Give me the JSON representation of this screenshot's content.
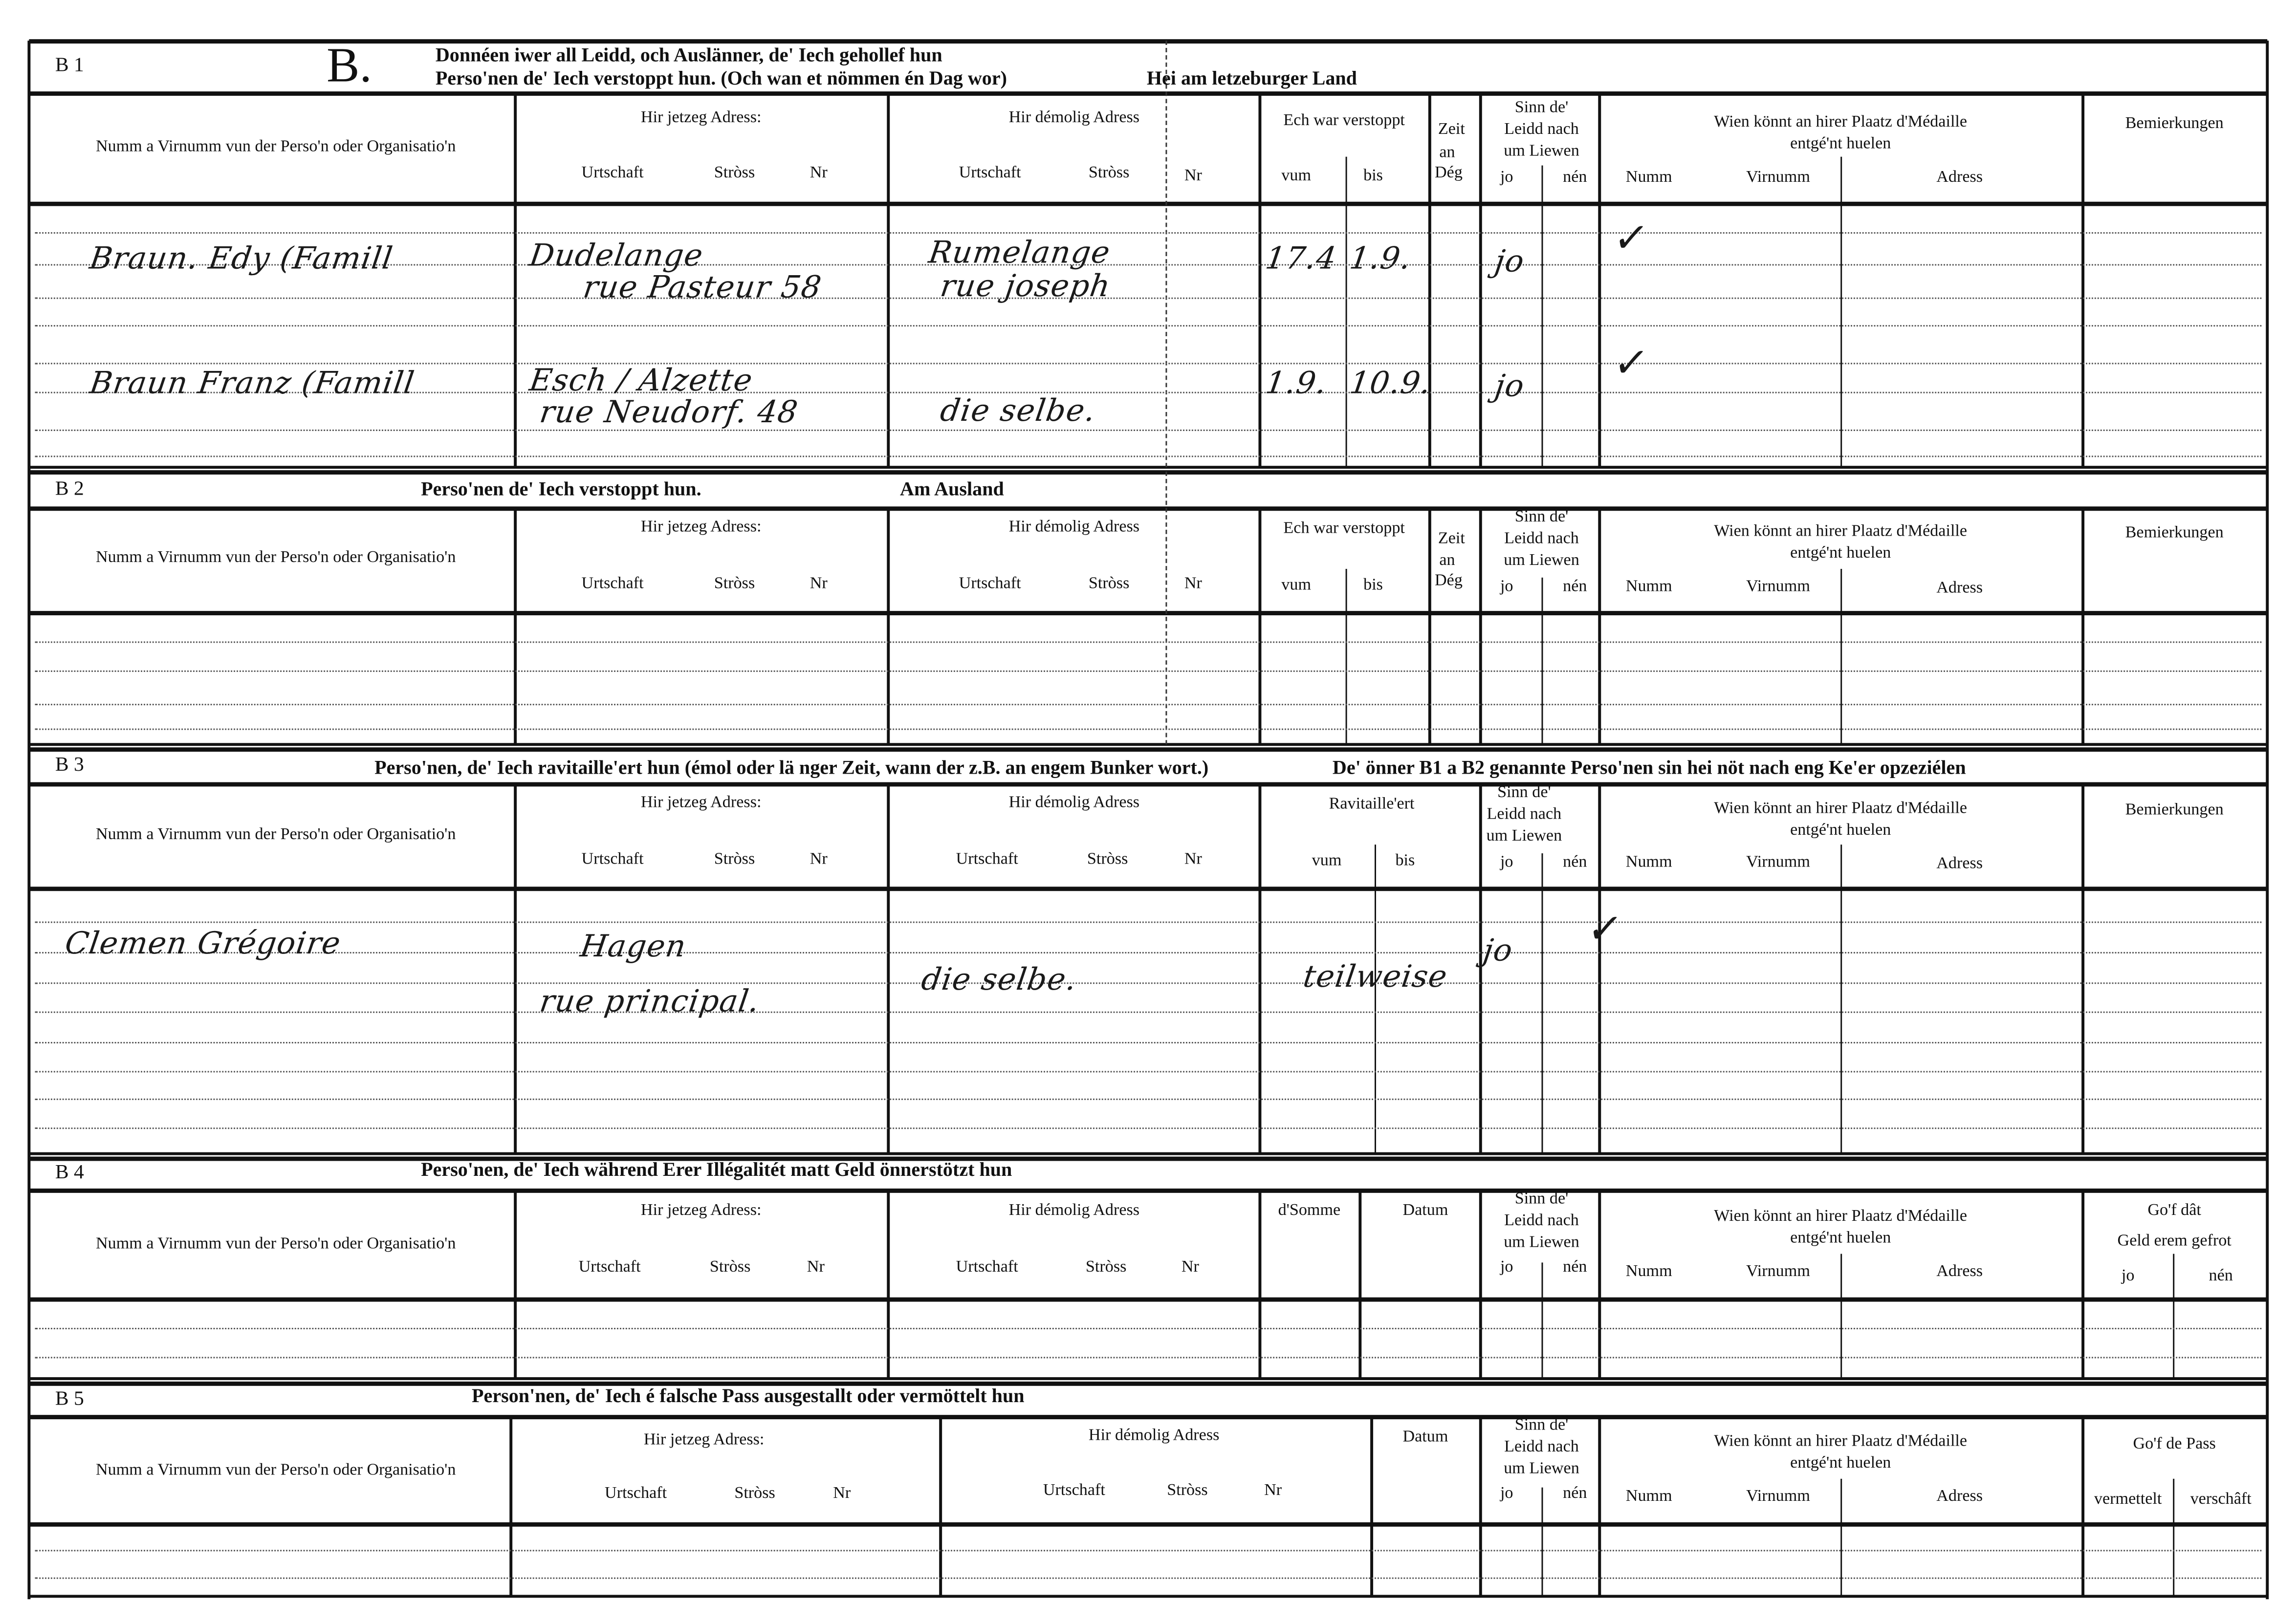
{
  "form_letter": "B.",
  "sections": [
    {
      "label": "B 1",
      "title": [
        "Donnéen iwer all Leidd, och Auslänner, de' Iech gehollef hun",
        "Perso'nen de' Iech verstoppt hun. (Och wan et nömmen én Dag wor)",
        "Hei am letzeburger Land"
      ],
      "headers": [
        "Numm a Virnumm vun der Perso'n oder Organisatio'n",
        "Hir jetzeg Adress:",
        "Urtschaft",
        "Stròss",
        "Nr",
        "Hir démolig Adress",
        "Urtschaft",
        "Stròss",
        "Nr",
        "Ech war verstoppt",
        "vum",
        "bis",
        "Zeit",
        "an",
        "Dég",
        "Sinn de'",
        "Leidd nach",
        "um Liewen",
        "jo",
        "nén",
        "Wien könnt an hirer Plaatz d'Médaille",
        "entgé'nt huelen",
        "Numm",
        "Virnumm",
        "Adress",
        "Bemierkungen"
      ],
      "entries": [
        {
          "name": "Braun. Edy (Famill",
          "current_address": [
            "Dudelange",
            "rue Pasteur 58"
          ],
          "former_address": [
            "Rumelange",
            "rue joseph"
          ],
          "from": "17.4",
          "to": "1.9.",
          "alive": "jo",
          "medal": "✓"
        },
        {
          "name": "Braun Franz (Famill",
          "current_address": [
            "Esch / Alzette",
            "rue Neudorf. 48"
          ],
          "former_address": [
            "",
            "die selbe."
          ],
          "from": "1.9.",
          "to": "10.9.",
          "alive": "jo",
          "medal": "✓"
        }
      ]
    },
    {
      "label": "B 2",
      "title": [
        "Perso'nen de' Iech verstoppt hun.",
        "Am Ausland"
      ],
      "headers": [
        "Numm a Virnumm vun der Perso'n oder Organisatio'n",
        "Hir jetzeg Adress:",
        "Urtschaft",
        "Stròss",
        "Nr",
        "Hir démolig Adress",
        "Urtschaft",
        "Stròss",
        "Nr",
        "Ech war verstoppt",
        "vum",
        "bis",
        "Zeit",
        "an",
        "Dég",
        "Sinn de'",
        "Leidd nach",
        "um Liewen",
        "jo",
        "nén",
        "Wien könnt an hirer Plaatz d'Médaille",
        "entgé'nt huelen",
        "Numm",
        "Virnumm",
        "Adress",
        "Bemierkungen"
      ],
      "entries": []
    },
    {
      "label": "B 3",
      "title": [
        "Perso'nen, de' Iech ravitaille'ert hun (émol oder lä nger Zeit, wann der z.B. an engem Bunker wort.)",
        "De' önner B1 a B2 genannte Perso'nen sin hei nöt nach eng Ke'er opzeziélen"
      ],
      "headers": [
        "Numm a Virnumm vun der Perso'n oder Organisatio'n",
        "Hir jetzeg Adress:",
        "Urtschaft",
        "Stròss",
        "Nr",
        "Hir démolig Adress",
        "Urtschaft",
        "Stròss",
        "Nr",
        "Ravitaille'ert",
        "vum",
        "bis",
        "Sinn de'",
        "Leidd nach",
        "um Liewen",
        "jo",
        "nén",
        "Wien könnt an hirer Plaatz d'Médaille",
        "entgé'nt huelen",
        "Numm",
        "Virnumm",
        "Adress",
        "Bemierkungen"
      ],
      "entries": [
        {
          "name": "Clemen Grégoire",
          "current_address": [
            "Hagen",
            "rue principal."
          ],
          "former_address": [
            "die selbe."
          ],
          "period": "teilweise",
          "alive": "jo",
          "medal": "✓"
        }
      ]
    },
    {
      "label": "B 4",
      "title": [
        "Perso'nen, de' Iech während Erer Illégalitét matt Geld önnerstötzt hun"
      ],
      "headers": [
        "Numm a Virnumm vun der Perso'n oder Organisatio'n",
        "Hir jetzeg Adress:",
        "Urtschaft",
        "Stròss",
        "Nr",
        "Hir démolig Adress",
        "Urtschaft",
        "Stròss",
        "Nr",
        "d'Somme",
        "Datum",
        "Sinn de'",
        "Leidd nach",
        "um Liewen",
        "jo",
        "nén",
        "Wien könnt an hirer Plaatz d'Médaille",
        "entgé'nt huelen",
        "Numm",
        "Virnumm",
        "Adress",
        "Go'f dât",
        "Geld erem gefrot",
        "jo",
        "nén"
      ],
      "entries": []
    },
    {
      "label": "B 5",
      "title": [
        "Person'nen, de' Iech é falsche Pass ausgestallt oder vermöttelt hun"
      ],
      "headers": [
        "Numm a Virnumm vun der Perso'n oder Organisatio'n",
        "Hir jetzeg Adress:",
        "Urtschaft",
        "Stròss",
        "Nr",
        "Hir démolig Adress",
        "Urtschaft",
        "Stròss",
        "Nr",
        "Datum",
        "Sinn de'",
        "Leidd nach",
        "um Liewen",
        "jo",
        "nén",
        "Wien könnt an hirer Plaatz d'Médaille",
        "entgé'nt huelen",
        "Numm",
        "Virnumm",
        "Adress",
        "Go'f de Pass",
        "vermettelt",
        "verschâft"
      ],
      "entries": []
    }
  ]
}
